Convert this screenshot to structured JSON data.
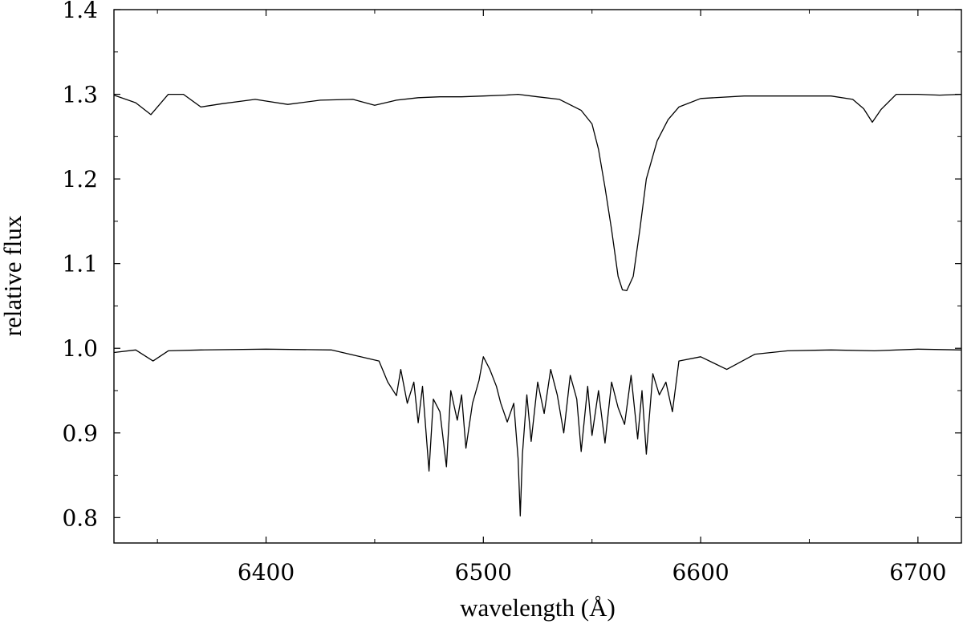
{
  "chart_data": {
    "type": "line",
    "title": "",
    "xlabel": "wavelength (Å)",
    "ylabel": "relative flux",
    "xlim": [
      6330,
      6720
    ],
    "ylim": [
      0.77,
      1.4
    ],
    "x_ticks": [
      6400,
      6500,
      6600,
      6700
    ],
    "x_tick_labels": [
      "6400",
      "6500",
      "6600",
      "6700"
    ],
    "y_ticks": [
      0.8,
      0.9,
      1.0,
      1.1,
      1.2,
      1.3,
      1.4
    ],
    "y_tick_labels": [
      "0.8",
      "0.9",
      "1.0",
      "1.1",
      "1.2",
      "1.3",
      "1.4"
    ],
    "grid": false,
    "line_color": "#000000",
    "series": [
      {
        "x": [
          6330,
          6340,
          6347,
          6355,
          6362,
          6370,
          6380,
          6395,
          6410,
          6425,
          6440,
          6450,
          6460,
          6470,
          6480,
          6490,
          6500,
          6510,
          6516,
          6525,
          6535,
          6545,
          6550,
          6553,
          6556,
          6559,
          6562,
          6564,
          6566,
          6569,
          6572,
          6575,
          6580,
          6585,
          6590,
          6600,
          6620,
          6640,
          6660,
          6670,
          6675,
          6679,
          6683,
          6690,
          6700,
          6710,
          6720
        ],
        "values": [
          1.299,
          1.29,
          1.276,
          1.3,
          1.3,
          1.285,
          1.289,
          1.294,
          1.288,
          1.293,
          1.294,
          1.287,
          1.293,
          1.296,
          1.297,
          1.297,
          1.298,
          1.299,
          1.3,
          1.297,
          1.294,
          1.281,
          1.265,
          1.235,
          1.19,
          1.14,
          1.085,
          1.069,
          1.068,
          1.085,
          1.14,
          1.2,
          1.245,
          1.27,
          1.285,
          1.295,
          1.298,
          1.298,
          1.298,
          1.294,
          1.283,
          1.267,
          1.282,
          1.3,
          1.3,
          1.299,
          1.3
        ]
      },
      {
        "x": [
          6330,
          6340,
          6348,
          6355,
          6370,
          6400,
          6430,
          6452,
          6456,
          6460,
          6462,
          6465,
          6468,
          6470,
          6472,
          6475,
          6477,
          6480,
          6483,
          6485,
          6488,
          6490,
          6492,
          6495,
          6498,
          6500,
          6503,
          6506,
          6508,
          6511,
          6514,
          6516,
          6517,
          6518,
          6520,
          6522,
          6525,
          6528,
          6531,
          6534,
          6537,
          6540,
          6543,
          6545,
          6548,
          6550,
          6553,
          6556,
          6559,
          6562,
          6565,
          6568,
          6571,
          6573,
          6575,
          6578,
          6581,
          6584,
          6587,
          6590,
          6600,
          6612,
          6625,
          6640,
          6660,
          6680,
          6700,
          6720
        ],
        "values": [
          0.995,
          0.998,
          0.985,
          0.997,
          0.998,
          0.999,
          0.998,
          0.985,
          0.96,
          0.944,
          0.975,
          0.935,
          0.96,
          0.912,
          0.955,
          0.855,
          0.94,
          0.925,
          0.86,
          0.95,
          0.915,
          0.945,
          0.882,
          0.935,
          0.962,
          0.99,
          0.975,
          0.955,
          0.935,
          0.913,
          0.935,
          0.87,
          0.802,
          0.875,
          0.945,
          0.89,
          0.96,
          0.923,
          0.975,
          0.945,
          0.9,
          0.968,
          0.94,
          0.878,
          0.955,
          0.897,
          0.95,
          0.888,
          0.96,
          0.93,
          0.91,
          0.968,
          0.893,
          0.95,
          0.875,
          0.97,
          0.945,
          0.96,
          0.925,
          0.985,
          0.99,
          0.975,
          0.993,
          0.997,
          0.998,
          0.997,
          0.999,
          0.998
        ]
      }
    ]
  }
}
